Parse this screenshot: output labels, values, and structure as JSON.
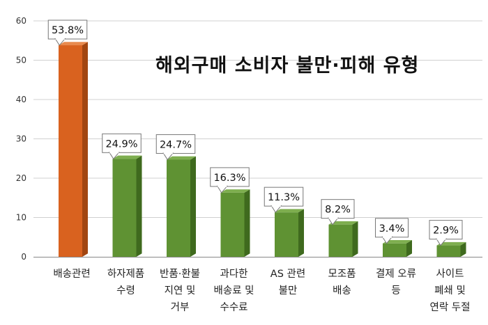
{
  "colors": {
    "highlight_front": "#d9621f",
    "highlight_side": "#a24611",
    "highlight_top": "#e88a4e",
    "normal_front": "#5f9233",
    "normal_side": "#3f6a1e",
    "normal_top": "#7eae4f",
    "gridline": "#d0d0d0",
    "axis": "#888888"
  },
  "chart_data": {
    "type": "bar",
    "title": "해외구매 소비자 불만·피해 유형",
    "categories": [
      "배송관련",
      "하자제품\n수령",
      "반품·환불\n지연 및\n거부",
      "과다한\n배송료 및\n수수료",
      "AS 관련\n불만",
      "모조품\n배송",
      "결제 오류\n등",
      "사이트\n폐쇄 및\n연락 두절"
    ],
    "values": [
      53.8,
      24.9,
      24.7,
      16.3,
      11.3,
      8.2,
      3.4,
      2.9
    ],
    "data_labels": [
      "53.8%",
      "24.9%",
      "24.7%",
      "16.3%",
      "11.3%",
      "8.2%",
      "3.4%",
      "2.9%"
    ],
    "highlight_index": 0,
    "ylim": [
      0,
      60
    ],
    "yticks": [
      0,
      10,
      20,
      30,
      40,
      50,
      60
    ],
    "grid": true,
    "legend": "none"
  }
}
